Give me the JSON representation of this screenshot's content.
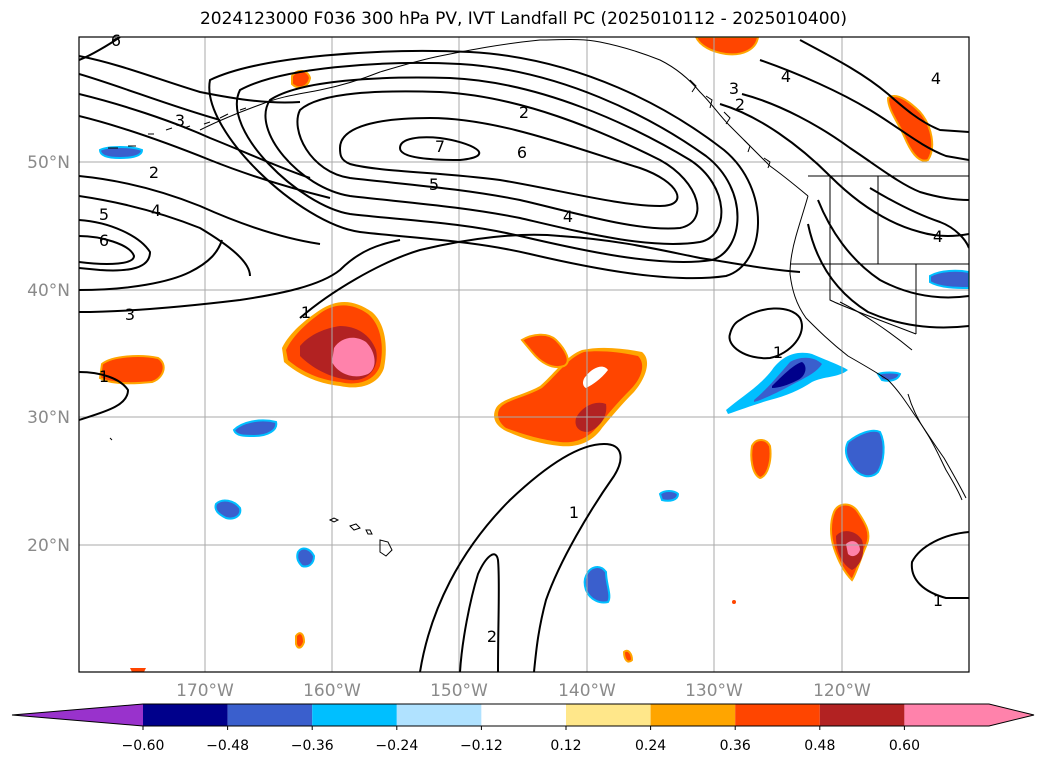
{
  "title": "2024123000 F036 300 hPa PV, IVT Landfall PC (2025010112 - 2025010400)",
  "map": {
    "lat_labels": [
      "50°N",
      "40°N",
      "30°N",
      "20°N"
    ],
    "lon_labels": [
      "170°W",
      "160°W",
      "150°W",
      "140°W",
      "130°W",
      "120°W"
    ],
    "contour_labels": [
      "6",
      "3",
      "2",
      "5",
      "4",
      "6",
      "7",
      "6",
      "5",
      "4",
      "2",
      "3",
      "2",
      "4",
      "4",
      "4",
      "1",
      "3",
      "1",
      "1",
      "1",
      "2",
      "1"
    ],
    "line_color": "#000000",
    "coast_color": "#000000",
    "grid_color": "#aaaaaa"
  },
  "colorbar": {
    "ticks": [
      "−0.60",
      "−0.48",
      "−0.36",
      "−0.24",
      "−0.12",
      "0.12",
      "0.24",
      "0.36",
      "0.48",
      "0.60"
    ],
    "colors": [
      "#9932cc",
      "#00008b",
      "#3a5fcd",
      "#00bfff",
      "#b0e2ff",
      "#ffffff",
      "#ffe78a",
      "#ffa500",
      "#ff4500",
      "#b22222",
      "#ff82ab"
    ]
  }
}
